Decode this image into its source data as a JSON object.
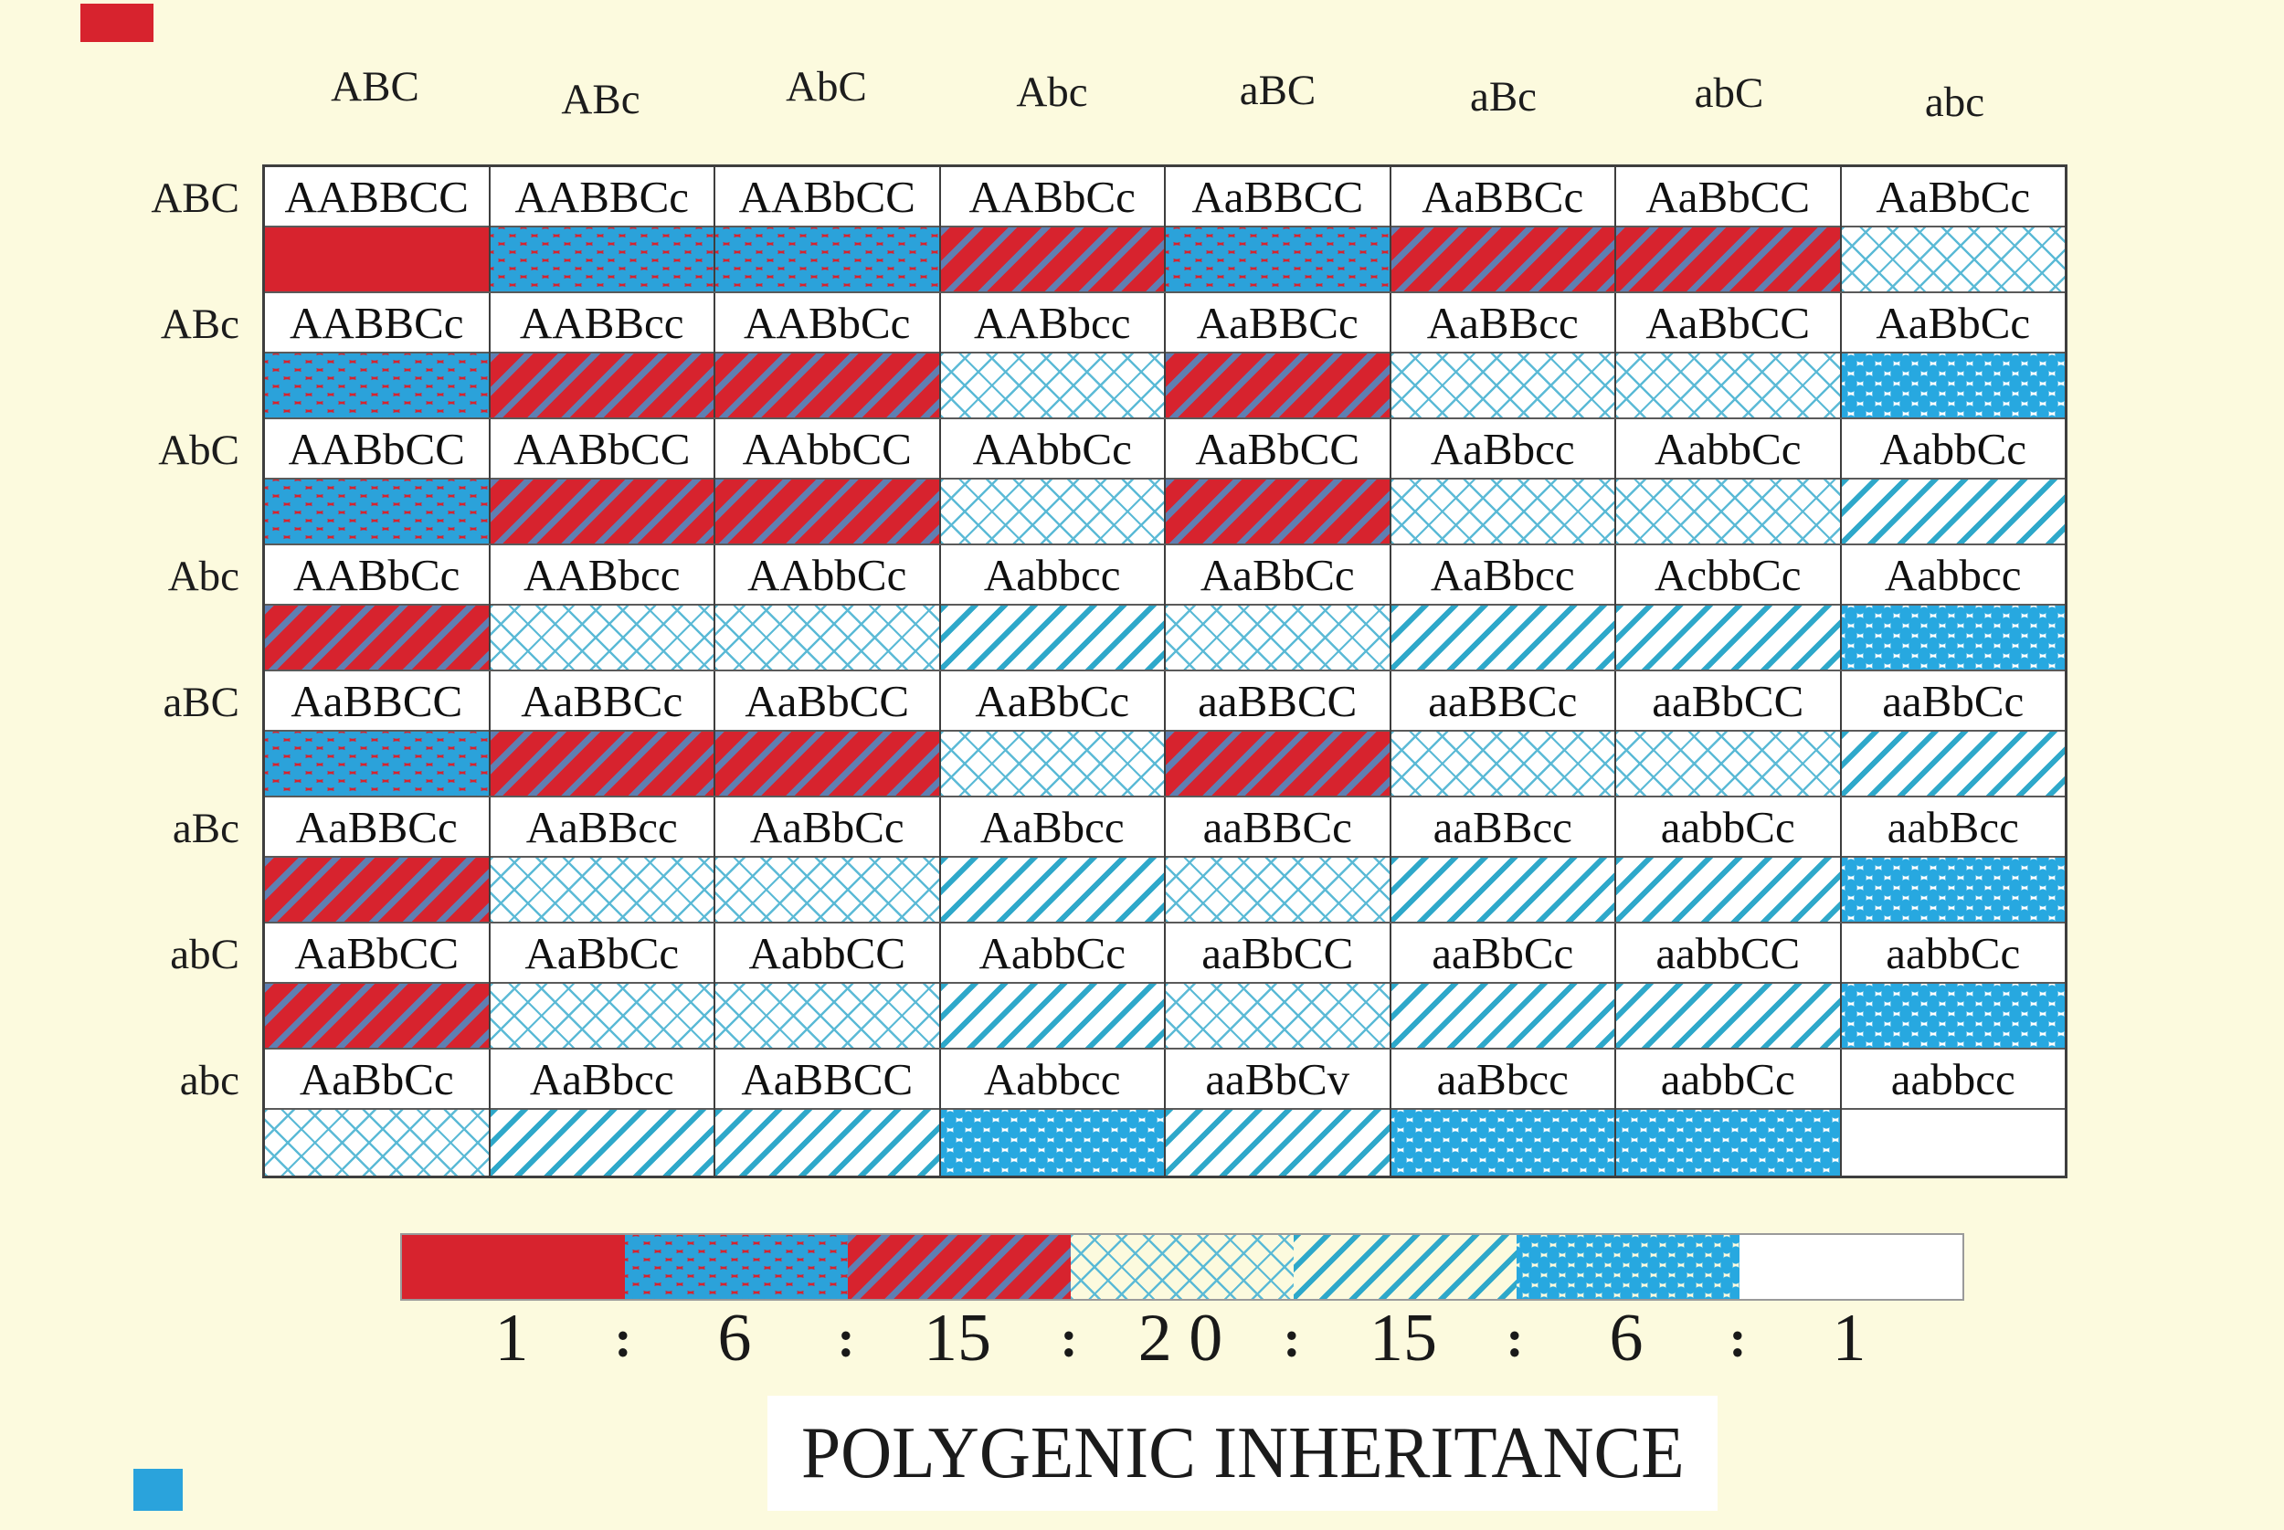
{
  "title": "POLYGENIC INHERITANCE",
  "colors": {
    "page_background": "#fcfade",
    "red": "#d7232e",
    "dot_blue_on_red": "#2ba2da",
    "stripe_blue_on_red": "#5f7fb2",
    "diag_teal": "#2ea8ca",
    "crosshatch_teal": "#5bbad6",
    "big_dot_blue": "#27a8e0",
    "corner_mark_top_left": "#d7232e",
    "corner_mark_bottom_left": "#2aa3dc"
  },
  "grid": {
    "col_headers": [
      "ABC",
      "ABc",
      "AbC",
      "Abc",
      "aBC",
      "aBc",
      "abC",
      "abc"
    ],
    "rows": [
      {
        "label": "ABC",
        "cells": [
          {
            "g": "AABBCC",
            "p": "solid"
          },
          {
            "g": "AABBCc",
            "p": "dotsRed"
          },
          {
            "g": "AABbCC",
            "p": "dotsRed"
          },
          {
            "g": "AABbCc",
            "p": "stripes"
          },
          {
            "g": "AaBBCC",
            "p": "dotsRed"
          },
          {
            "g": "AaBBCc",
            "p": "stripes"
          },
          {
            "g": "AaBbCC",
            "p": "stripes"
          },
          {
            "g": "AaBbCc",
            "p": "cross"
          }
        ]
      },
      {
        "label": "ABc",
        "cells": [
          {
            "g": "AABBCc",
            "p": "dotsRed"
          },
          {
            "g": "AABBcc",
            "p": "stripes"
          },
          {
            "g": "AABbCc",
            "p": "stripes"
          },
          {
            "g": "AABbcc",
            "p": "cross"
          },
          {
            "g": "AaBBCc",
            "p": "stripes"
          },
          {
            "g": "AaBBcc",
            "p": "cross"
          },
          {
            "g": "AaBbCC",
            "p": "cross"
          },
          {
            "g": "AaBbCc",
            "p": "dotsBlue"
          }
        ]
      },
      {
        "label": "AbC",
        "cells": [
          {
            "g": "AABbCC",
            "p": "dotsRed"
          },
          {
            "g": "AABbCC",
            "p": "stripes"
          },
          {
            "g": "AAbbCC",
            "p": "stripes"
          },
          {
            "g": "AAbbCc",
            "p": "cross"
          },
          {
            "g": "AaBbCC",
            "p": "stripes"
          },
          {
            "g": "AaBbcc",
            "p": "cross"
          },
          {
            "g": "AabbCc",
            "p": "cross"
          },
          {
            "g": "AabbCc",
            "p": "diag"
          }
        ]
      },
      {
        "label": "Abc",
        "cells": [
          {
            "g": "AABbCc",
            "p": "stripes"
          },
          {
            "g": "AABbcc",
            "p": "cross"
          },
          {
            "g": "AAbbCc",
            "p": "cross"
          },
          {
            "g": "Aabbcc",
            "p": "diag"
          },
          {
            "g": "AaBbCc",
            "p": "cross"
          },
          {
            "g": "AaBbcc",
            "p": "diag"
          },
          {
            "g": "AcbbCc",
            "p": "diag"
          },
          {
            "g": "Aabbcc",
            "p": "dotsBlue"
          }
        ]
      },
      {
        "label": "aBC",
        "cells": [
          {
            "g": "AaBBCC",
            "p": "dotsRed"
          },
          {
            "g": "AaBBCc",
            "p": "stripes"
          },
          {
            "g": "AaBbCC",
            "p": "stripes"
          },
          {
            "g": "AaBbCc",
            "p": "cross"
          },
          {
            "g": "aaBBCC",
            "p": "stripes"
          },
          {
            "g": "aaBBCc",
            "p": "cross"
          },
          {
            "g": "aaBbCC",
            "p": "cross"
          },
          {
            "g": "aaBbCc",
            "p": "diag"
          }
        ]
      },
      {
        "label": "aBc",
        "cells": [
          {
            "g": "AaBBCc",
            "p": "stripes"
          },
          {
            "g": "AaBBcc",
            "p": "cross"
          },
          {
            "g": "AaBbCc",
            "p": "cross"
          },
          {
            "g": "AaBbcc",
            "p": "diag"
          },
          {
            "g": "aaBBCc",
            "p": "cross"
          },
          {
            "g": "aaBBcc",
            "p": "diag"
          },
          {
            "g": "aabbCc",
            "p": "diag"
          },
          {
            "g": "aabBcc",
            "p": "dotsBlue"
          }
        ]
      },
      {
        "label": "abC",
        "cells": [
          {
            "g": "AaBbCC",
            "p": "stripes"
          },
          {
            "g": "AaBbCc",
            "p": "cross"
          },
          {
            "g": "AabbCC",
            "p": "cross"
          },
          {
            "g": "AabbCc",
            "p": "diag"
          },
          {
            "g": "aaBbCC",
            "p": "cross"
          },
          {
            "g": "aaBbCc",
            "p": "diag"
          },
          {
            "g": "aabbCC",
            "p": "diag"
          },
          {
            "g": "aabbCc",
            "p": "dotsBlue"
          }
        ]
      },
      {
        "label": "abc",
        "cells": [
          {
            "g": "AaBbCc",
            "p": "cross"
          },
          {
            "g": "AaBbcc",
            "p": "diag"
          },
          {
            "g": "AaBBCC",
            "p": "diag"
          },
          {
            "g": "Aabbcc",
            "p": "dotsBlue"
          },
          {
            "g": "aaBbCv",
            "p": "diag"
          },
          {
            "g": "aaBbcc",
            "p": "dotsBlue"
          },
          {
            "g": "aabbCc",
            "p": "dotsBlue"
          },
          {
            "g": "aabbcc",
            "p": "plain"
          }
        ]
      }
    ]
  },
  "legend": {
    "swatches": [
      {
        "p": "solid"
      },
      {
        "p": "dotsRed"
      },
      {
        "p": "stripes"
      },
      {
        "p": "cross"
      },
      {
        "p": "diag"
      },
      {
        "p": "dotsBlue"
      },
      {
        "p": "plain"
      }
    ],
    "ratio": [
      "1",
      "6",
      "15",
      "2 0",
      "15",
      "6",
      "1"
    ],
    "separator": ":"
  }
}
